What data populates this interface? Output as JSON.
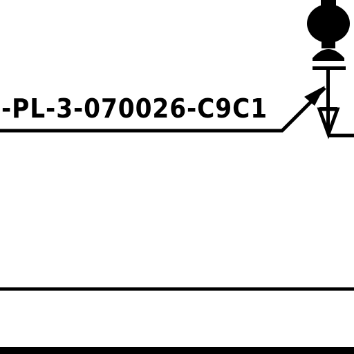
{
  "diagram": {
    "type": "P&ID pipeline drawing fragment",
    "line_label": "-PL-3-070026-C9C1",
    "colors": {
      "background": "#ffffff",
      "ink": "#000000"
    },
    "symbols": [
      {
        "name": "valve-actuator-icon"
      },
      {
        "name": "check-valve-arrow-icon"
      },
      {
        "name": "flow-direction-arrow-icon"
      }
    ]
  }
}
